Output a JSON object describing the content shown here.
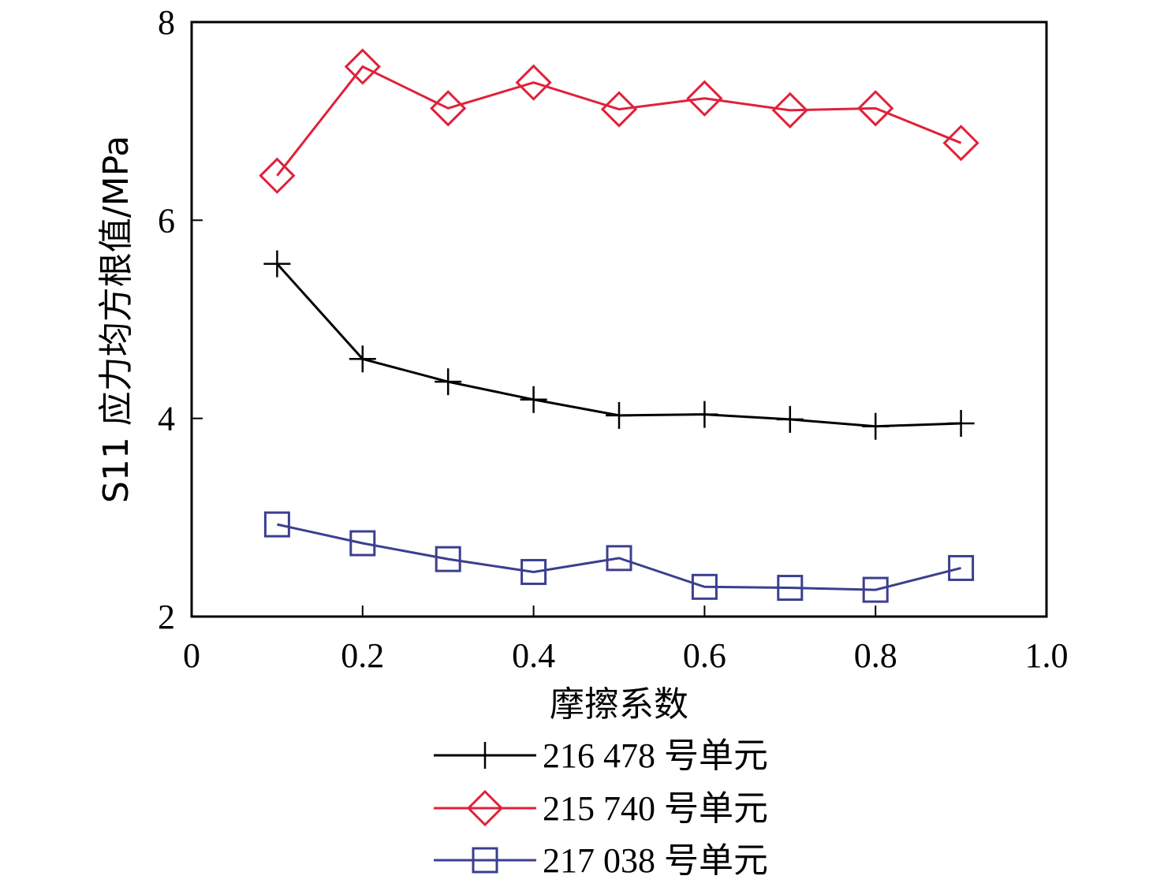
{
  "chart_data": {
    "type": "line",
    "xlabel": "摩擦系数",
    "ylabel": "S11 应力均方根值/MPa",
    "xlim": [
      0,
      1.0
    ],
    "ylim": [
      2,
      8
    ],
    "xticks": [
      "0",
      "0.2",
      "0.4",
      "0.6",
      "0.8",
      "1.0"
    ],
    "yticks": [
      "2",
      "4",
      "6",
      "8"
    ],
    "xtick_values": [
      0,
      0.2,
      0.4,
      0.6,
      0.8,
      1.0
    ],
    "ytick_values": [
      2,
      4,
      6,
      8
    ],
    "grid": false,
    "legend_position": "bottom",
    "x": [
      0.1,
      0.2,
      0.3,
      0.4,
      0.5,
      0.6,
      0.7,
      0.8,
      0.9
    ],
    "series": [
      {
        "name": "216 478 号单元",
        "marker": "plus",
        "color": "#000000",
        "values": [
          5.56,
          4.6,
          4.37,
          4.19,
          4.03,
          4.04,
          3.99,
          3.92,
          3.95
        ]
      },
      {
        "name": "215 740 号单元",
        "marker": "diamond",
        "color": "#e0213a",
        "values": [
          6.45,
          7.55,
          7.13,
          7.39,
          7.12,
          7.23,
          7.11,
          7.13,
          6.78
        ]
      },
      {
        "name": "217 038 号单元",
        "marker": "square",
        "color": "#3b3f8f",
        "values": [
          2.93,
          2.74,
          2.58,
          2.45,
          2.59,
          2.3,
          2.29,
          2.27,
          2.49
        ]
      }
    ]
  }
}
